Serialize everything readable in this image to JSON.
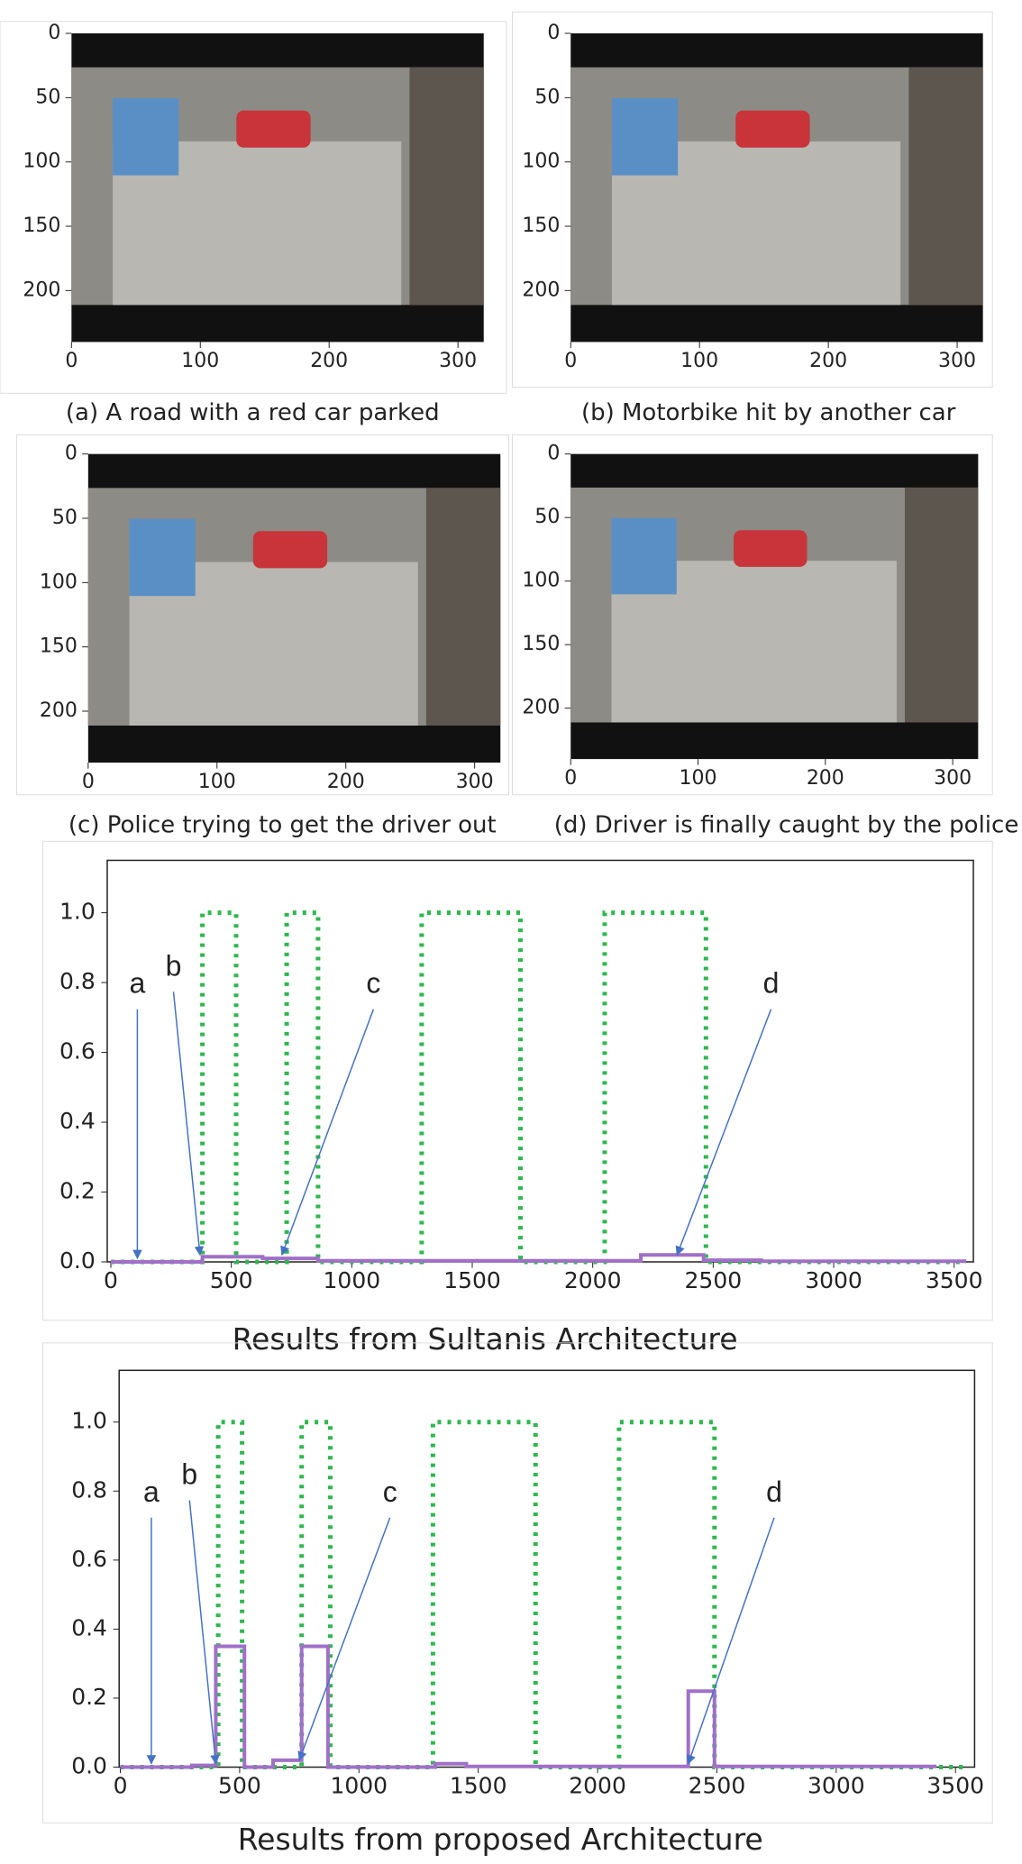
{
  "chart_data": [
    {
      "type": "image",
      "caption": "(a) A road with a red car parked",
      "xlim": [
        0,
        320
      ],
      "ylim": [
        240,
        0
      ],
      "xticks": [
        0,
        100,
        200,
        300
      ],
      "yticks": [
        0,
        50,
        100,
        150,
        200
      ]
    },
    {
      "type": "image",
      "caption": "(b) Motorbike hit by another car",
      "xlim": [
        0,
        320
      ],
      "ylim": [
        240,
        0
      ],
      "xticks": [
        0,
        100,
        200,
        300
      ],
      "yticks": [
        0,
        50,
        100,
        150,
        200
      ]
    },
    {
      "type": "image",
      "caption": "(c) Police trying to get the driver out",
      "xlim": [
        0,
        320
      ],
      "ylim": [
        240,
        0
      ],
      "xticks": [
        0,
        100,
        200,
        300
      ],
      "yticks": [
        0,
        50,
        100,
        150,
        200
      ]
    },
    {
      "type": "image",
      "caption": "(d) Driver is finally caught by the police",
      "xlim": [
        0,
        320
      ],
      "ylim": [
        240,
        0
      ],
      "xticks": [
        0,
        100,
        200,
        300
      ],
      "yticks": [
        0,
        50,
        100,
        150,
        200
      ]
    },
    {
      "type": "line",
      "caption": "Results from Sultanis Architecture",
      "xlim": [
        -15,
        3580
      ],
      "ylim": [
        0,
        1.15
      ],
      "xticks": [
        0,
        500,
        1000,
        1500,
        2000,
        2500,
        3000,
        3500
      ],
      "yticks": [
        {
          "value": 0,
          "label": "0.0"
        },
        {
          "value": 0.2,
          "label": "0.2"
        },
        {
          "value": 0.4,
          "label": "0.4"
        },
        {
          "value": 0.6,
          "label": "0.6"
        },
        {
          "value": 0.8,
          "label": "0.8"
        },
        {
          "value": 1,
          "label": "1.0"
        }
      ],
      "series": [
        {
          "color": "#2db84d",
          "dash": true,
          "x": [
            0,
            380,
            380,
            520,
            520,
            730,
            730,
            860,
            860,
            1290,
            1290,
            1700,
            1700,
            2050,
            2050,
            2470,
            2470,
            3550
          ],
          "values": [
            0,
            0,
            1,
            1,
            0,
            0,
            1,
            1,
            0,
            0,
            1,
            1,
            0,
            0,
            1,
            1,
            0,
            0
          ]
        },
        {
          "color": "#a070c8",
          "dash": false,
          "x": [
            0,
            380,
            380,
            630,
            630,
            860,
            860,
            2200,
            2200,
            2460,
            2460,
            2700,
            2700,
            3550
          ],
          "values": [
            0,
            0,
            0.015,
            0.015,
            0.01,
            0.01,
            0.003,
            0.003,
            0.02,
            0.02,
            0.005,
            0.005,
            0.002,
            0.002
          ]
        }
      ],
      "annotations": [
        {
          "text": "a",
          "xy": [
            110,
            0.01
          ],
          "xytext": [
            110,
            0.77
          ]
        },
        {
          "text": "b",
          "xy": [
            370,
            0.02
          ],
          "xytext": [
            260,
            0.82
          ]
        },
        {
          "text": "c",
          "xy": [
            710,
            0.02
          ],
          "xytext": [
            1090,
            0.77
          ]
        },
        {
          "text": "d",
          "xy": [
            2350,
            0.02
          ],
          "xytext": [
            2740,
            0.77
          ]
        }
      ]
    },
    {
      "type": "line",
      "caption": "Results from proposed Architecture",
      "xlim": [
        -5,
        3580
      ],
      "ylim": [
        0,
        1.15
      ],
      "xticks": [
        0,
        500,
        1000,
        1500,
        2000,
        2500,
        3000,
        3500
      ],
      "yticks": [
        {
          "value": 0,
          "label": "0.0"
        },
        {
          "value": 0.2,
          "label": "0.2"
        },
        {
          "value": 0.4,
          "label": "0.4"
        },
        {
          "value": 0.6,
          "label": "0.6"
        },
        {
          "value": 0.8,
          "label": "0.8"
        },
        {
          "value": 1,
          "label": "1.0"
        }
      ],
      "series": [
        {
          "color": "#2db84d",
          "dash": true,
          "x": [
            0,
            410,
            410,
            510,
            510,
            760,
            760,
            880,
            880,
            1310,
            1310,
            1740,
            1740,
            2090,
            2090,
            2490,
            2490,
            3550
          ],
          "values": [
            0,
            0,
            1,
            1,
            0,
            0,
            1,
            1,
            0,
            0,
            1,
            1,
            0,
            0,
            1,
            1,
            0,
            0
          ]
        },
        {
          "color": "#a070c8",
          "dash": false,
          "x": [
            0,
            300,
            300,
            400,
            400,
            520,
            520,
            640,
            640,
            760,
            760,
            870,
            870,
            1320,
            1320,
            1450,
            1450,
            2380,
            2380,
            2490,
            2490,
            3420
          ],
          "values": [
            0,
            0,
            0.005,
            0.005,
            0.35,
            0.35,
            0,
            0,
            0.02,
            0.02,
            0.35,
            0.35,
            0,
            0,
            0.01,
            0.01,
            0.002,
            0.002,
            0.22,
            0.22,
            0.002,
            0.002
          ]
        }
      ],
      "annotations": [
        {
          "text": "a",
          "xy": [
            130,
            0.01
          ],
          "xytext": [
            130,
            0.77
          ]
        },
        {
          "text": "b",
          "xy": [
            400,
            0.01
          ],
          "xytext": [
            290,
            0.82
          ]
        },
        {
          "text": "c",
          "xy": [
            750,
            0.02
          ],
          "xytext": [
            1130,
            0.77
          ]
        },
        {
          "text": "d",
          "xy": [
            2380,
            0.01
          ],
          "xytext": [
            2740,
            0.77
          ]
        }
      ]
    }
  ]
}
